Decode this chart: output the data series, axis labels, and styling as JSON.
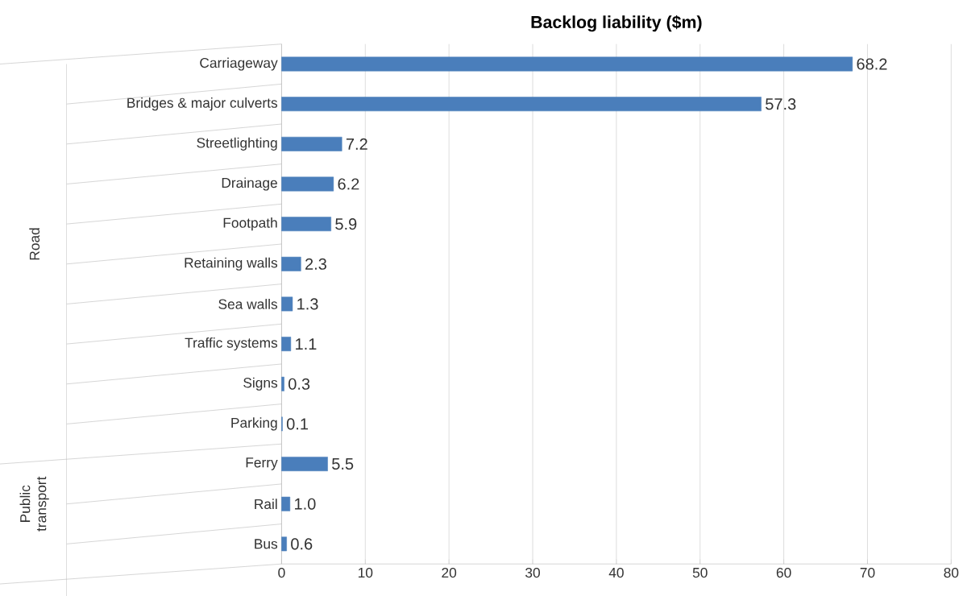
{
  "chart_data": {
    "type": "bar",
    "orientation": "horizontal",
    "title": "Backlog liability  ($m)",
    "categories": [
      "Carriageway",
      "Bridges & major culverts",
      "Streetlighting",
      "Drainage",
      "Footpath",
      "Retaining walls",
      "Sea walls",
      "Traffic systems",
      "Signs",
      "Parking",
      "Ferry",
      "Rail",
      "Bus"
    ],
    "values": [
      68.2,
      57.3,
      7.2,
      6.2,
      5.9,
      2.3,
      1.3,
      1.1,
      0.3,
      0.1,
      5.5,
      1.0,
      0.6
    ],
    "value_labels": [
      "68.2",
      "57.3",
      "7.2",
      "6.2",
      "5.9",
      "2.3",
      "1.3",
      "1.1",
      "0.3",
      "0.1",
      "5.5",
      "1.0",
      "0.6"
    ],
    "color": "#4a7ebb",
    "xlim": [
      0,
      80
    ],
    "xticks": [
      0,
      10,
      20,
      30,
      40,
      50,
      60,
      70,
      80
    ],
    "grid": "x",
    "annotations": [
      "Road",
      "Public transport"
    ]
  }
}
